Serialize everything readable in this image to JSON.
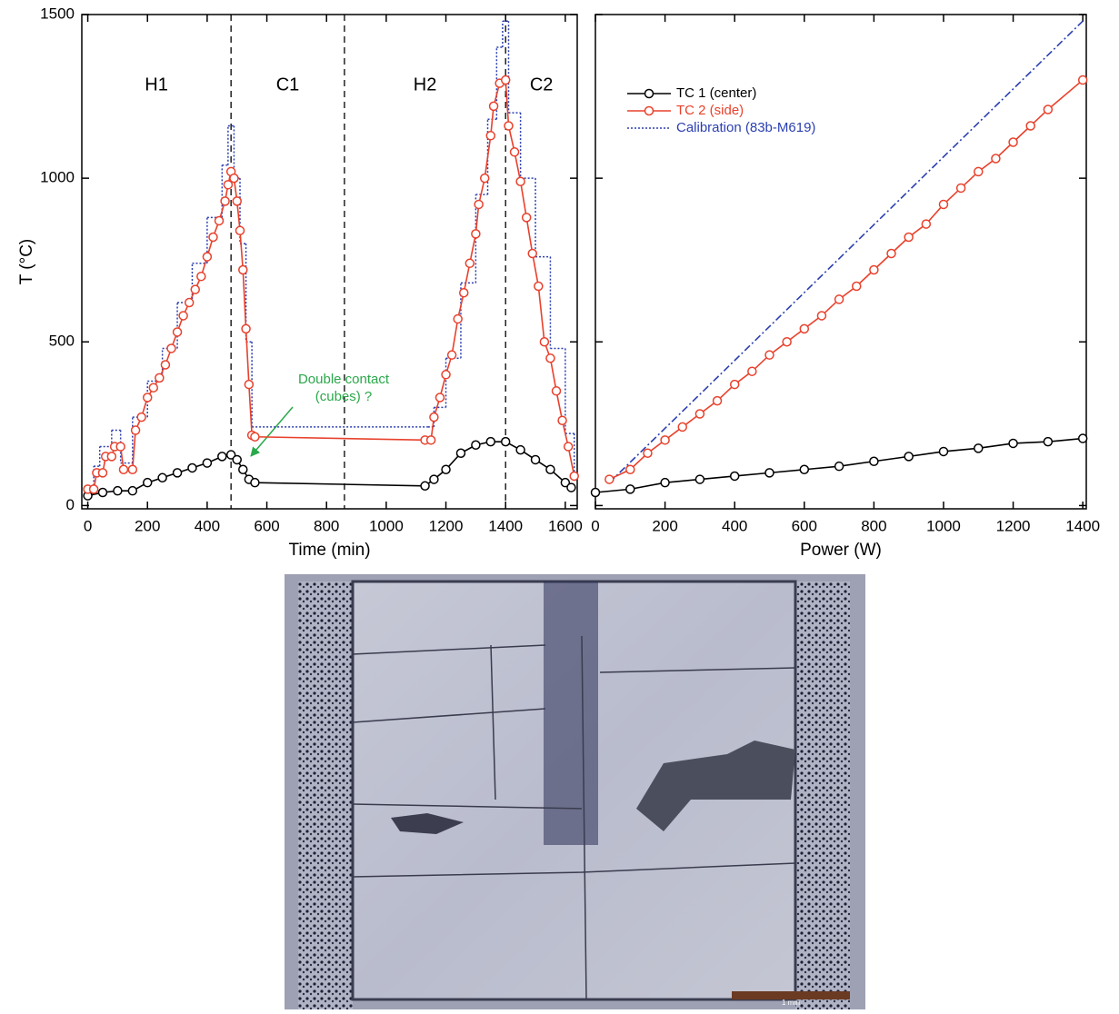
{
  "chart_data": [
    {
      "type": "line",
      "xlabel": "Time (min)",
      "ylabel": "T (°C)",
      "xlim": [
        -20,
        1640
      ],
      "ylim": [
        -10,
        1500
      ],
      "xticks": [
        0,
        200,
        400,
        600,
        800,
        1000,
        1200,
        1400,
        1600
      ],
      "yticks": [
        0,
        500,
        1000,
        1500
      ],
      "vlines": [
        480,
        860,
        1400
      ],
      "phases": [
        "H1",
        "C1",
        "H2",
        "C2"
      ],
      "annotation": {
        "text": [
          "Double contact",
          "(cubes) ?"
        ],
        "color": "#2aa84a"
      },
      "series": [
        {
          "color": "#000000",
          "marker": "o",
          "style": "solid",
          "x": [
            0,
            50,
            100,
            150,
            200,
            250,
            300,
            350,
            400,
            450,
            480,
            500,
            520,
            540,
            560,
            1130,
            1160,
            1200,
            1250,
            1300,
            1350,
            1400,
            1450,
            1500,
            1550,
            1600,
            1620
          ],
          "values": [
            30,
            40,
            45,
            45,
            70,
            85,
            100,
            115,
            130,
            150,
            155,
            140,
            110,
            80,
            70,
            60,
            80,
            110,
            160,
            185,
            195,
            195,
            170,
            140,
            110,
            70,
            55
          ]
        },
        {
          "color": "#e8412c",
          "marker": "o",
          "style": "solid",
          "x": [
            0,
            20,
            30,
            50,
            60,
            80,
            90,
            110,
            120,
            150,
            160,
            180,
            200,
            220,
            240,
            260,
            280,
            300,
            320,
            340,
            360,
            380,
            400,
            420,
            440,
            460,
            470,
            480,
            490,
            500,
            510,
            520,
            530,
            540,
            550,
            560,
            1130,
            1150,
            1160,
            1180,
            1200,
            1220,
            1240,
            1260,
            1280,
            1300,
            1310,
            1330,
            1350,
            1360,
            1380,
            1400,
            1410,
            1430,
            1450,
            1470,
            1490,
            1510,
            1530,
            1550,
            1570,
            1590,
            1610,
            1630
          ],
          "values": [
            50,
            50,
            100,
            100,
            150,
            150,
            180,
            180,
            110,
            110,
            230,
            270,
            330,
            360,
            390,
            430,
            480,
            530,
            580,
            620,
            660,
            700,
            760,
            820,
            870,
            930,
            980,
            1020,
            1000,
            930,
            840,
            720,
            540,
            370,
            215,
            210,
            200,
            200,
            270,
            330,
            400,
            460,
            570,
            650,
            740,
            830,
            920,
            1000,
            1130,
            1220,
            1290,
            1300,
            1160,
            1080,
            990,
            880,
            770,
            670,
            500,
            450,
            350,
            260,
            180,
            90
          ]
        },
        {
          "color": "#2b3fb0",
          "style": "dotted",
          "drawstyle": "steps-post",
          "x": [
            0,
            20,
            40,
            80,
            110,
            150,
            200,
            250,
            300,
            350,
            400,
            450,
            470,
            490,
            510,
            530,
            550,
            1140,
            1160,
            1200,
            1250,
            1300,
            1340,
            1370,
            1390,
            1410,
            1450,
            1500,
            1550,
            1600,
            1630
          ],
          "values": [
            50,
            120,
            180,
            230,
            130,
            270,
            380,
            480,
            620,
            740,
            880,
            1040,
            1160,
            1000,
            800,
            500,
            240,
            240,
            300,
            450,
            680,
            950,
            1180,
            1400,
            1480,
            1200,
            1000,
            760,
            480,
            220,
            100
          ]
        }
      ]
    },
    {
      "type": "line",
      "xlabel": "Power (W)",
      "xlim": [
        0,
        1410
      ],
      "ylim": [
        -10,
        1500
      ],
      "xticks": [
        0,
        200,
        400,
        600,
        800,
        1000,
        1200,
        1400
      ],
      "yticks": [
        0,
        500,
        1000,
        1500
      ],
      "ytick_labels": false,
      "legend": "upper left",
      "series": [
        {
          "name": "TC 1 (center)",
          "color": "#000000",
          "marker": "o",
          "style": "solid",
          "x": [
            0,
            100,
            200,
            300,
            400,
            500,
            600,
            700,
            800,
            900,
            1000,
            1100,
            1200,
            1300,
            1400
          ],
          "values": [
            40,
            50,
            70,
            80,
            90,
            100,
            110,
            120,
            135,
            150,
            165,
            175,
            190,
            195,
            205
          ]
        },
        {
          "name": "TC 2 (side)",
          "color": "#e8412c",
          "marker": "o",
          "style": "solid",
          "x": [
            40,
            100,
            150,
            200,
            250,
            300,
            350,
            400,
            450,
            500,
            550,
            600,
            650,
            700,
            750,
            800,
            850,
            900,
            950,
            1000,
            1050,
            1100,
            1150,
            1200,
            1250,
            1300,
            1400
          ],
          "values": [
            80,
            110,
            160,
            200,
            240,
            280,
            320,
            370,
            410,
            460,
            500,
            540,
            580,
            630,
            670,
            720,
            770,
            820,
            860,
            920,
            970,
            1020,
            1060,
            1110,
            1160,
            1210,
            1300
          ]
        },
        {
          "name": "Calibration (83b-M619)",
          "color": "#2b3fb0",
          "style": "dashdot",
          "x": [
            40,
            1400
          ],
          "values": [
            70,
            1480
          ]
        }
      ]
    }
  ],
  "image": {
    "scale_bar": "1 mm"
  }
}
